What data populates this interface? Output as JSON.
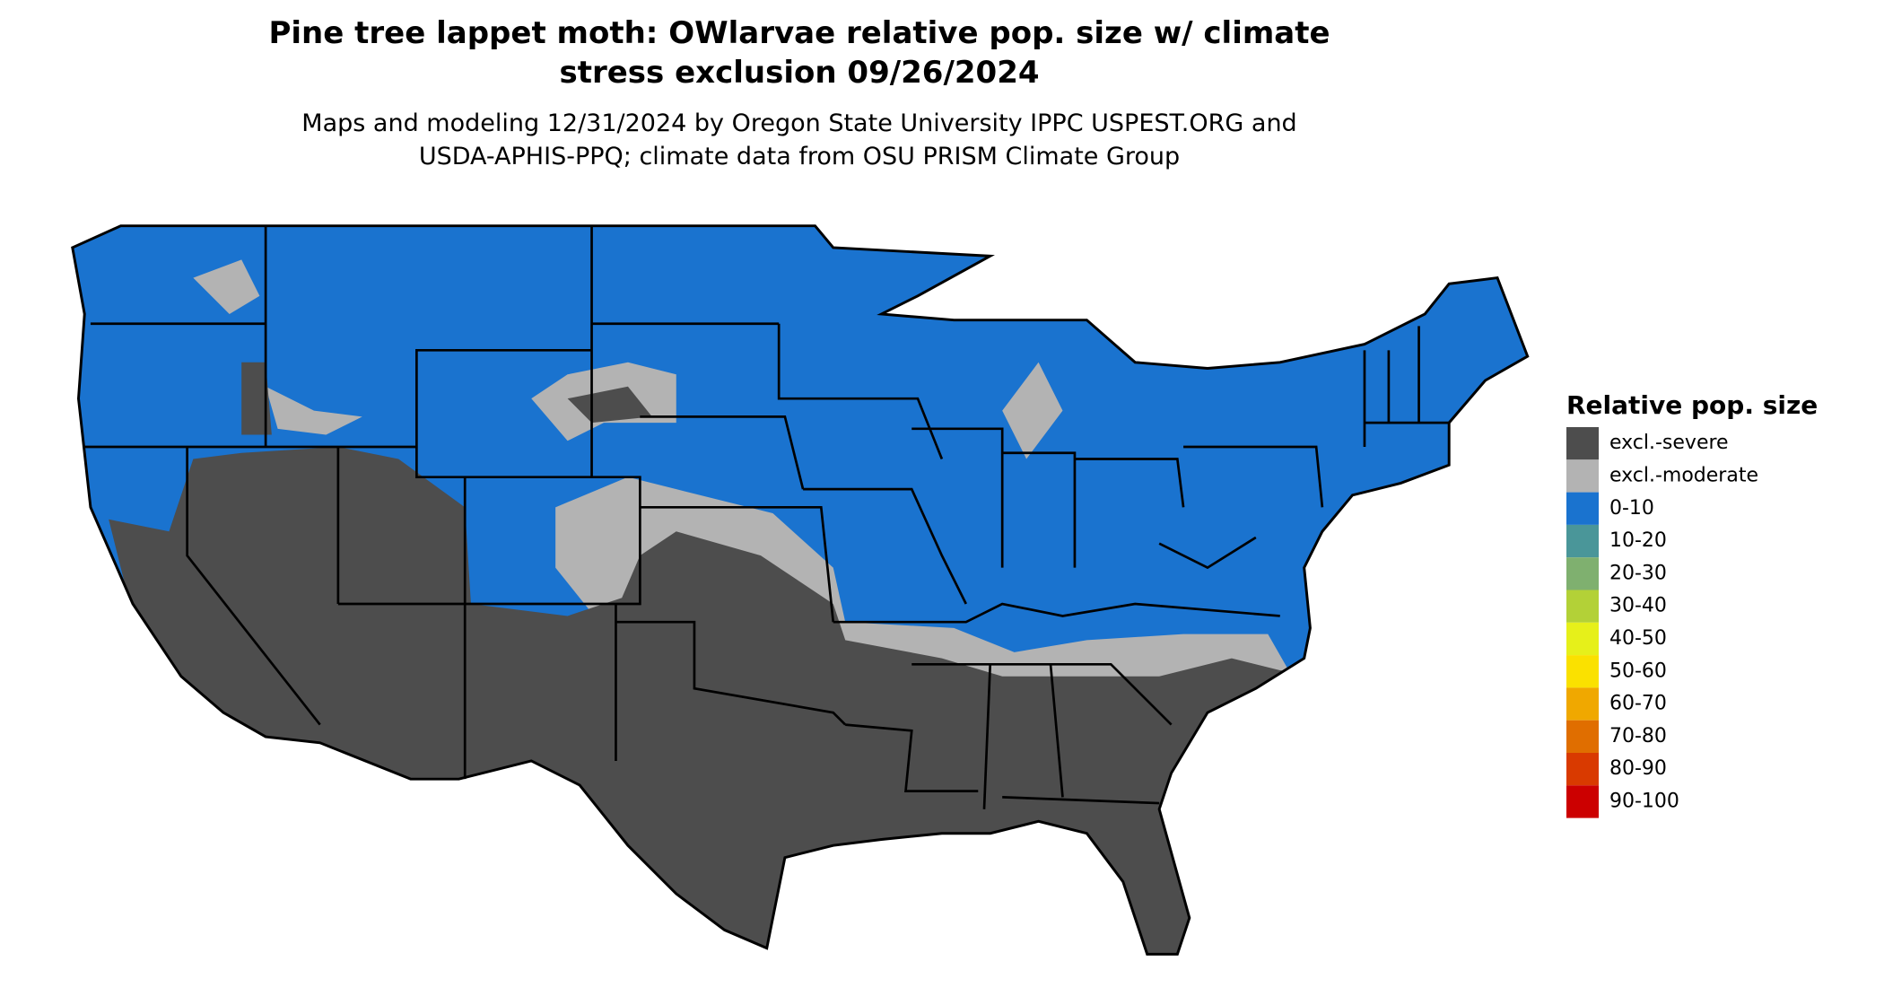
{
  "header": {
    "title_lines": [
      "Pine tree lappet moth: OWlarvae relative pop. size w/ climate",
      "stress exclusion 09/26/2024"
    ],
    "subtitle_lines": [
      "Maps and modeling 12/31/2024 by Oregon State University IPPC USPEST.ORG and",
      "USDA-APHIS-PPQ; climate data from OSU PRISM Climate Group"
    ]
  },
  "legend": {
    "title": "Relative pop. size",
    "items": [
      {
        "label": "excl.-severe",
        "color": "#4d4d4d"
      },
      {
        "label": "excl.-moderate",
        "color": "#b3b3b3"
      },
      {
        "label": "0-10",
        "color": "#1a73cf"
      },
      {
        "label": "10-20",
        "color": "#4a9699"
      },
      {
        "label": "20-30",
        "color": "#7fb06f"
      },
      {
        "label": "30-40",
        "color": "#b3d137"
      },
      {
        "label": "40-50",
        "color": "#e6f01a"
      },
      {
        "label": "50-60",
        "color": "#fae100"
      },
      {
        "label": "60-70",
        "color": "#f0a800"
      },
      {
        "label": "70-80",
        "color": "#e06e00"
      },
      {
        "label": "80-90",
        "color": "#d93a00"
      },
      {
        "label": "90-100",
        "color": "#cc0000"
      }
    ]
  }
}
